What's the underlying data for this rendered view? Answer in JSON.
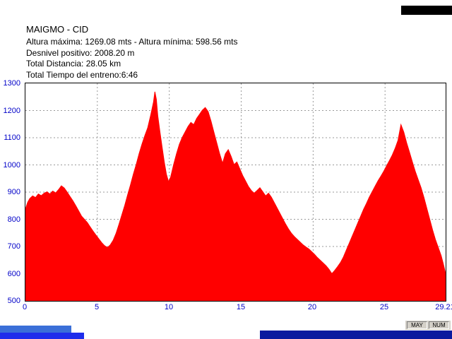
{
  "header": {
    "title": "MAIGMO - CID",
    "stats": [
      "Altura máxima: 1269.08 mts - Altura mínima: 598.56 mts",
      "Desnivel positivo: 2008.20 m",
      "Total Distancia: 28.05 km",
      "Total Tiempo del entreno:6:46"
    ]
  },
  "statusbar": {
    "caps": "MAY",
    "num": "NUM"
  },
  "colors": {
    "area_fill": "#ff0000",
    "grid": "#9a9a9a",
    "axis_labels": "#0000c8",
    "chart_border": "#000000",
    "text": "#000000",
    "statusbar_bg": "#d4d0c8",
    "taskbar_left_upper": "#3a6fd8",
    "taskbar_left_lower": "#1e2deb",
    "taskbar_right": "#0a1a9e",
    "topright_bar": "#000000"
  },
  "chart_data": {
    "type": "area",
    "title": "MAIGMO - CID",
    "xlabel": "",
    "ylabel": "",
    "xlim": [
      0,
      29.21
    ],
    "ylim": [
      500,
      1300
    ],
    "x_ticks": [
      0,
      5,
      10,
      15,
      20,
      25,
      29.21
    ],
    "y_ticks": [
      500,
      600,
      700,
      800,
      900,
      1000,
      1100,
      1200,
      1300
    ],
    "grid": true,
    "legend": false,
    "fill_color": "#ff0000",
    "max_altitude_m": 1269.08,
    "min_altitude_m": 598.56,
    "total_ascent_m": 2008.2,
    "total_distance_km": 28.05,
    "total_time": "6:46",
    "x": [
      0,
      0.15,
      0.3,
      0.5,
      0.7,
      0.9,
      1.1,
      1.3,
      1.5,
      1.7,
      1.9,
      2.1,
      2.3,
      2.5,
      2.7,
      2.9,
      3.1,
      3.3,
      3.5,
      3.7,
      3.9,
      4.1,
      4.3,
      4.5,
      4.7,
      4.9,
      5.1,
      5.3,
      5.5,
      5.7,
      5.9,
      6.1,
      6.3,
      6.5,
      6.7,
      6.9,
      7.1,
      7.3,
      7.5,
      7.7,
      7.9,
      8.1,
      8.3,
      8.5,
      8.7,
      8.9,
      9.0,
      9.1,
      9.2,
      9.35,
      9.5,
      9.65,
      9.8,
      9.95,
      10.1,
      10.3,
      10.5,
      10.7,
      10.9,
      11.1,
      11.3,
      11.5,
      11.7,
      11.9,
      12.1,
      12.3,
      12.5,
      12.7,
      12.9,
      13.1,
      13.3,
      13.5,
      13.7,
      13.9,
      14.1,
      14.3,
      14.5,
      14.7,
      14.9,
      15.1,
      15.3,
      15.5,
      15.7,
      15.9,
      16.1,
      16.3,
      16.5,
      16.7,
      16.9,
      17.1,
      17.3,
      17.5,
      17.7,
      17.9,
      18.1,
      18.3,
      18.5,
      18.7,
      18.9,
      19.1,
      19.3,
      19.5,
      19.7,
      19.9,
      20.1,
      20.3,
      20.5,
      20.7,
      20.9,
      21.1,
      21.3,
      21.5,
      21.7,
      21.9,
      22.1,
      22.3,
      22.5,
      22.7,
      22.9,
      23.1,
      23.3,
      23.5,
      23.7,
      23.9,
      24.1,
      24.3,
      24.5,
      24.7,
      24.9,
      25.1,
      25.3,
      25.5,
      25.7,
      25.9,
      26.1,
      26.3,
      26.5,
      26.7,
      26.9,
      27.1,
      27.3,
      27.5,
      27.7,
      27.9,
      28.1,
      28.3,
      28.5,
      28.7,
      28.9,
      29.05,
      29.21
    ],
    "y": [
      838,
      862,
      876,
      886,
      880,
      893,
      887,
      896,
      901,
      893,
      904,
      897,
      909,
      923,
      915,
      900,
      884,
      868,
      850,
      831,
      812,
      800,
      788,
      772,
      757,
      742,
      728,
      714,
      703,
      696,
      706,
      723,
      748,
      781,
      816,
      851,
      889,
      926,
      966,
      1001,
      1041,
      1076,
      1108,
      1136,
      1181,
      1231,
      1269,
      1241,
      1181,
      1121,
      1066,
      1011,
      966,
      938,
      956,
      1001,
      1041,
      1076,
      1101,
      1121,
      1141,
      1156,
      1148,
      1171,
      1186,
      1201,
      1211,
      1196,
      1161,
      1121,
      1081,
      1041,
      1006,
      1041,
      1056,
      1031,
      1001,
      1011,
      986,
      961,
      941,
      921,
      906,
      896,
      906,
      916,
      901,
      886,
      896,
      881,
      861,
      841,
      821,
      801,
      781,
      763,
      748,
      736,
      726,
      716,
      706,
      698,
      691,
      681,
      671,
      659,
      649,
      639,
      629,
      616,
      600,
      612,
      626,
      641,
      661,
      686,
      711,
      736,
      761,
      786,
      811,
      836,
      858,
      881,
      901,
      921,
      941,
      958,
      976,
      996,
      1016,
      1036,
      1061,
      1091,
      1148,
      1121,
      1081,
      1046,
      1011,
      976,
      946,
      916,
      881,
      841,
      801,
      761,
      726,
      696,
      666,
      636,
      600
    ]
  }
}
